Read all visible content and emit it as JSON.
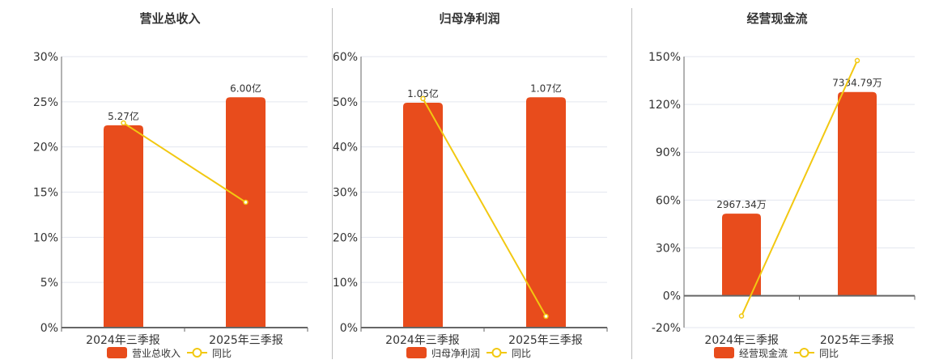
{
  "colors": {
    "bar": "#e84c1c",
    "line": "#f2c811",
    "grid": "#e3e6ef",
    "axis": "#666666",
    "text": "#333333"
  },
  "chart_data": [
    {
      "type": "bar",
      "title": "营业总收入",
      "categories": [
        "2024年三季报",
        "2025年三季报"
      ],
      "series": [
        {
          "name": "营业总收入",
          "type": "bar",
          "value_labels": [
            "5.27亿",
            "6.00亿"
          ],
          "values_pct_axis": [
            22.4,
            25.5
          ]
        },
        {
          "name": "同比",
          "type": "line",
          "values": [
            22.66,
            13.88
          ]
        }
      ],
      "yticks": [
        "30%",
        "25%",
        "20%",
        "15%",
        "10%",
        "5%",
        "0%"
      ],
      "ylim": [
        0,
        30
      ],
      "legend": [
        "营业总收入",
        "同比"
      ]
    },
    {
      "type": "bar",
      "title": "归母净利润",
      "categories": [
        "2024年三季报",
        "2025年三季报"
      ],
      "series": [
        {
          "name": "归母净利润",
          "type": "bar",
          "value_labels": [
            "1.05亿",
            "1.07亿"
          ],
          "values_pct_axis": [
            49.8,
            51.0
          ]
        },
        {
          "name": "同比",
          "type": "line",
          "values": [
            50.7,
            2.5
          ]
        }
      ],
      "yticks": [
        "60%",
        "50%",
        "40%",
        "30%",
        "20%",
        "10%",
        "0%"
      ],
      "ylim": [
        0,
        60
      ],
      "legend": [
        "归母净利润",
        "同比"
      ]
    },
    {
      "type": "bar",
      "title": "经营现金流",
      "categories": [
        "2024年三季报",
        "2025年三季报"
      ],
      "series": [
        {
          "name": "经营现金流",
          "type": "bar",
          "value_labels": [
            "2967.34万",
            "7334.79万"
          ],
          "values_pct_axis": [
            51.5,
            127.8
          ]
        },
        {
          "name": "同比",
          "type": "line",
          "values": [
            -12.7,
            147.5
          ]
        }
      ],
      "yticks": [
        "150%",
        "120%",
        "90%",
        "60%",
        "30%",
        "0%",
        "-20%"
      ],
      "ylim": [
        -20,
        150
      ],
      "legend": [
        "经营现金流",
        "同比"
      ]
    }
  ]
}
